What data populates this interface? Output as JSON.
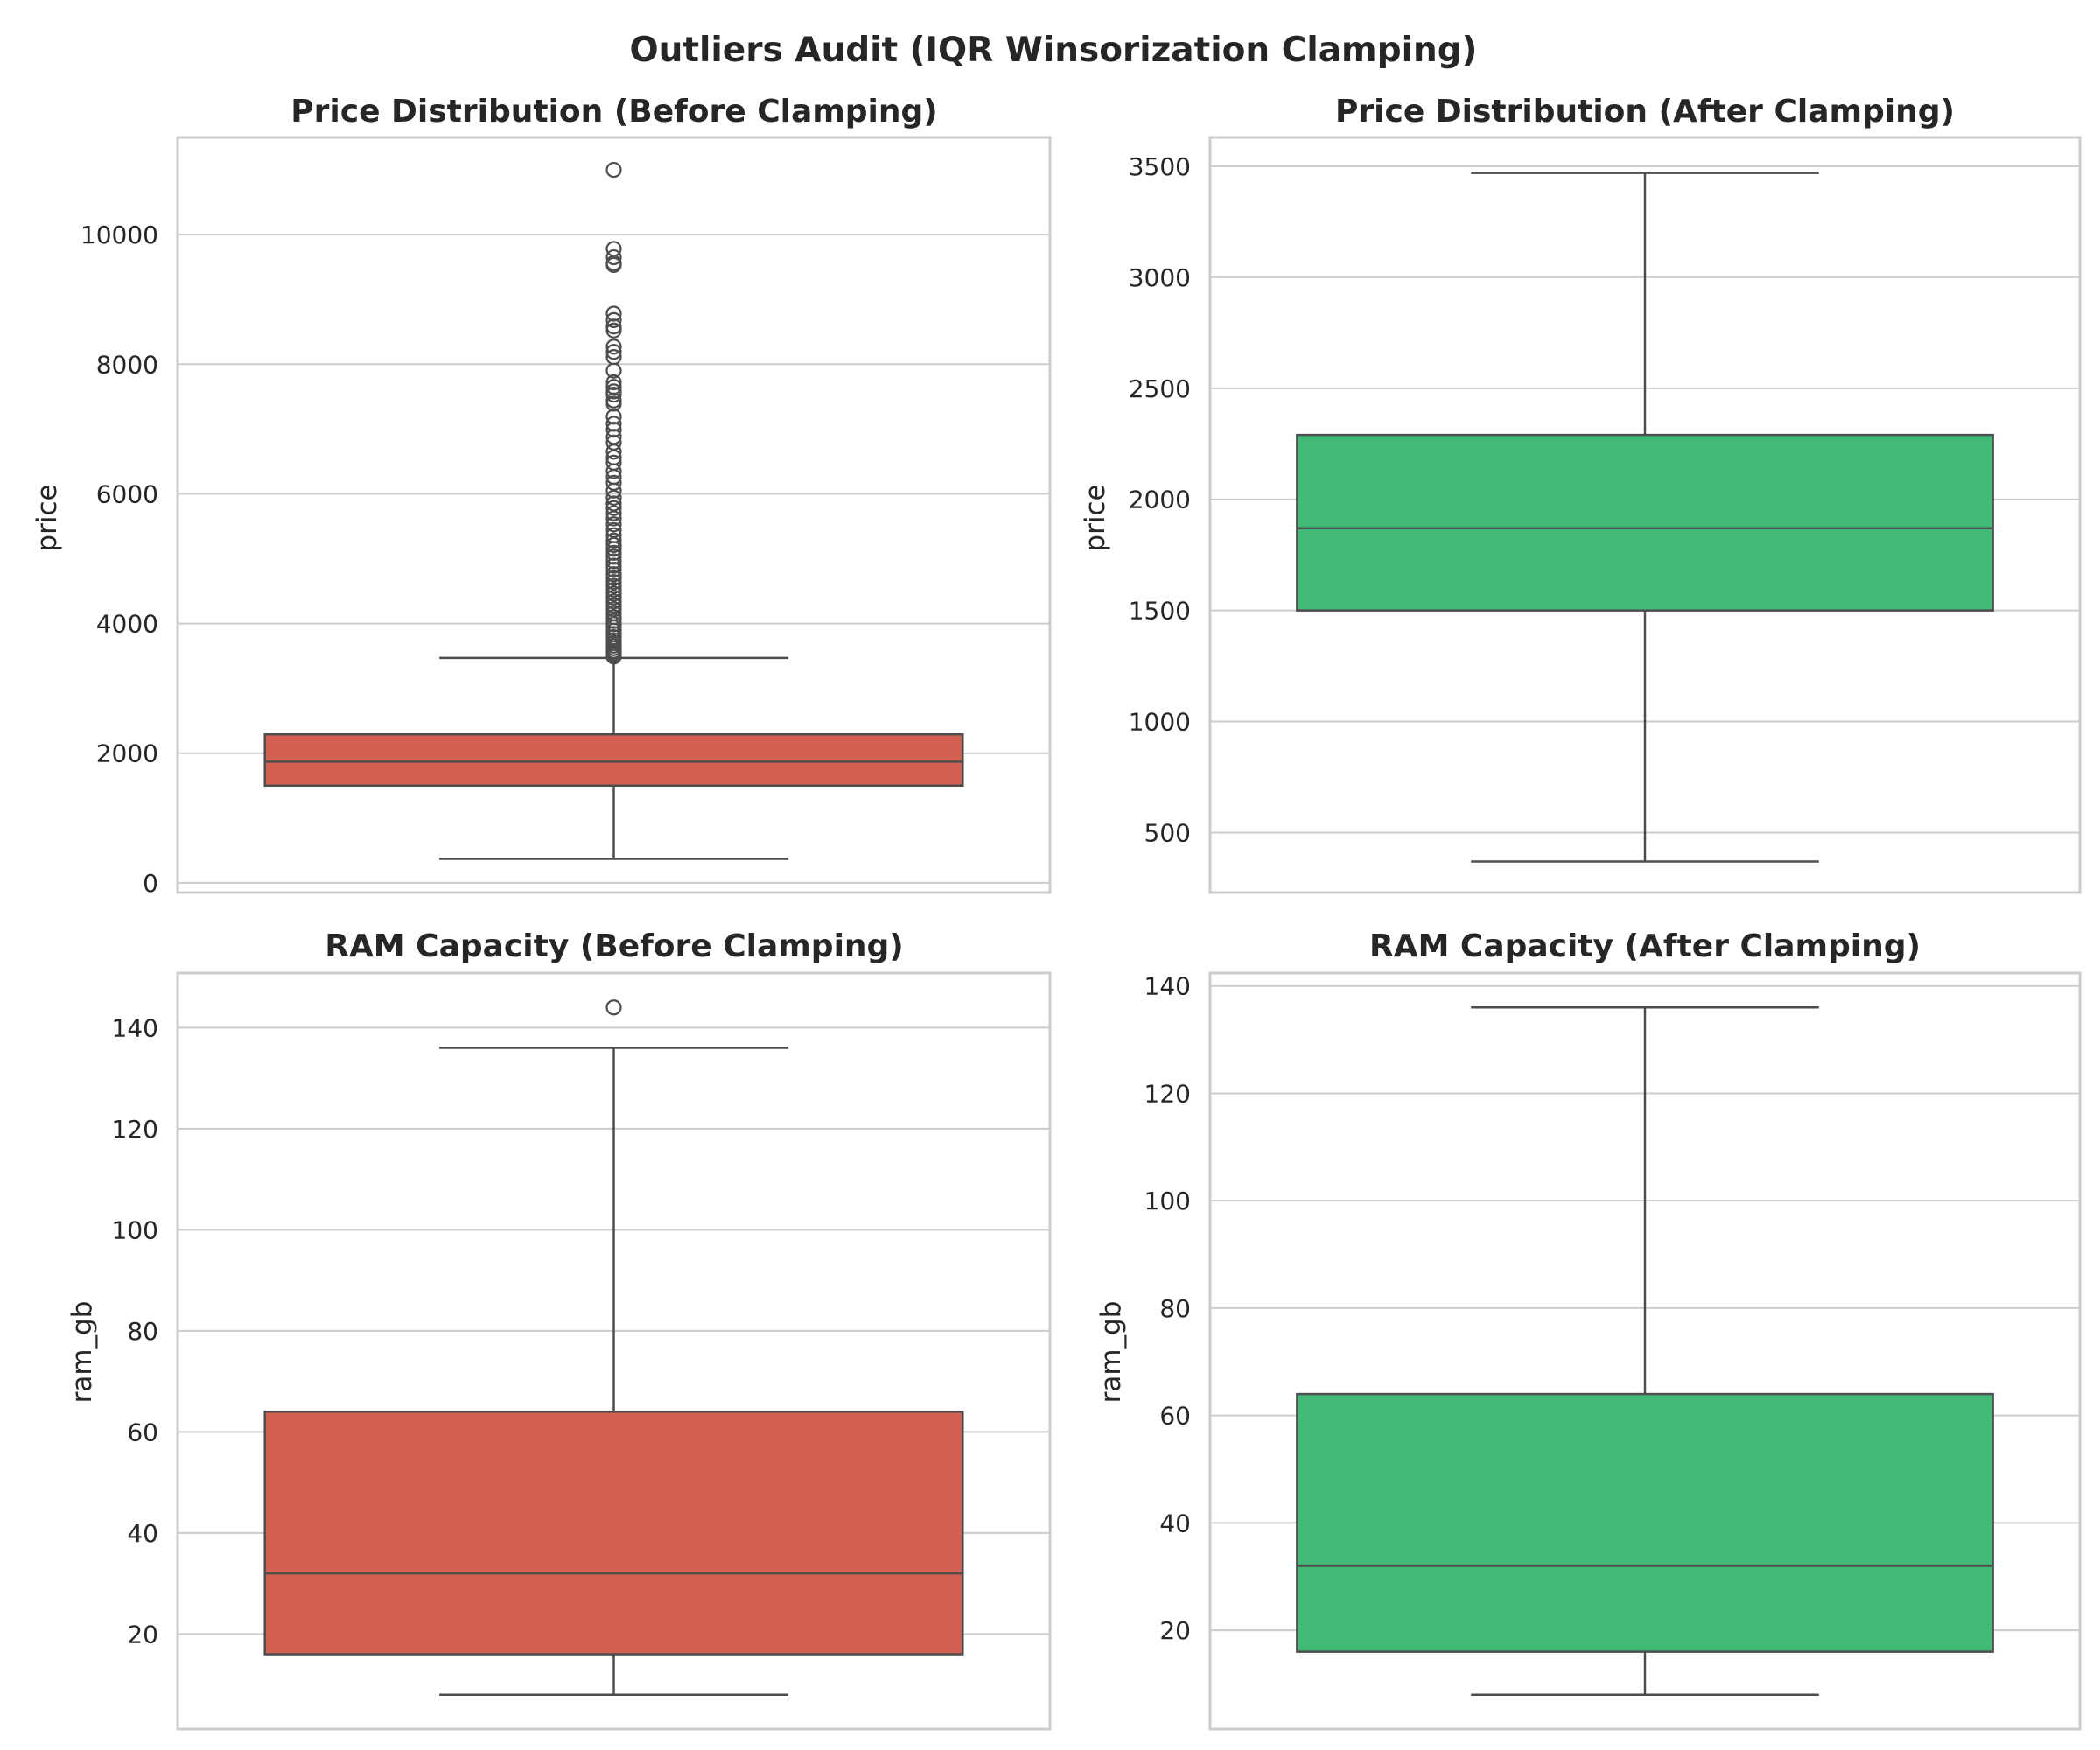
{
  "title": "Outliers Audit (IQR Winsorization Clamping)",
  "colors": {
    "before": "#d45f53",
    "after": "#41ba76",
    "line": "#4d4d4d",
    "grid": "#cccccc"
  },
  "chart_data": [
    {
      "type": "box",
      "title": "Price Distribution (Before Clamping)",
      "ylabel": "price",
      "ylim": [
        -150,
        11500
      ],
      "yticks": [
        0,
        2000,
        4000,
        6000,
        8000,
        10000
      ],
      "color_key": "before",
      "box": {
        "whislo": 370,
        "q1": 1500,
        "median": 1870,
        "q3": 2290,
        "whishi": 3470
      },
      "fliers": [
        11000,
        9780,
        9650,
        9560,
        9530,
        8780,
        8680,
        8580,
        8520,
        8270,
        8190,
        8110,
        7900,
        7720,
        7650,
        7580,
        7530,
        7440,
        7390,
        7190,
        7080,
        6990,
        6880,
        6790,
        6650,
        6560,
        6480,
        6350,
        6260,
        6170,
        6050,
        5940,
        5850,
        5780,
        5700,
        5620,
        5530,
        5440,
        5360,
        5280,
        5210,
        5150,
        5090,
        5030,
        4960,
        4890,
        4830,
        4760,
        4700,
        4640,
        4580,
        4520,
        4460,
        4400,
        4340,
        4280,
        4220,
        4160,
        4100,
        4040,
        3990,
        3940,
        3890,
        3840,
        3790,
        3740,
        3700,
        3660,
        3620,
        3580,
        3550,
        3520,
        3490
      ]
    },
    {
      "type": "box",
      "title": "Price Distribution (After Clamping)",
      "ylabel": "price",
      "ylim": [
        230,
        3630
      ],
      "yticks": [
        500,
        1000,
        1500,
        2000,
        2500,
        3000,
        3500
      ],
      "color_key": "after",
      "box": {
        "whislo": 370,
        "q1": 1500,
        "median": 1870,
        "q3": 2290,
        "whishi": 3470
      },
      "fliers": []
    },
    {
      "type": "box",
      "title": "RAM Capacity (Before Clamping)",
      "ylabel": "ram_gb",
      "ylim": [
        1.2,
        150.8
      ],
      "yticks": [
        20,
        40,
        60,
        80,
        100,
        120,
        140
      ],
      "color_key": "before",
      "box": {
        "whislo": 8,
        "q1": 16,
        "median": 32,
        "q3": 64,
        "whishi": 136
      },
      "fliers": [
        144
      ]
    },
    {
      "type": "box",
      "title": "RAM Capacity (After Clamping)",
      "ylabel": "ram_gb",
      "ylim": [
        1.6,
        142.4
      ],
      "yticks": [
        20,
        40,
        60,
        80,
        100,
        120,
        140
      ],
      "color_key": "after",
      "box": {
        "whislo": 8,
        "q1": 16,
        "median": 32,
        "q3": 64,
        "whishi": 136
      },
      "fliers": []
    }
  ]
}
